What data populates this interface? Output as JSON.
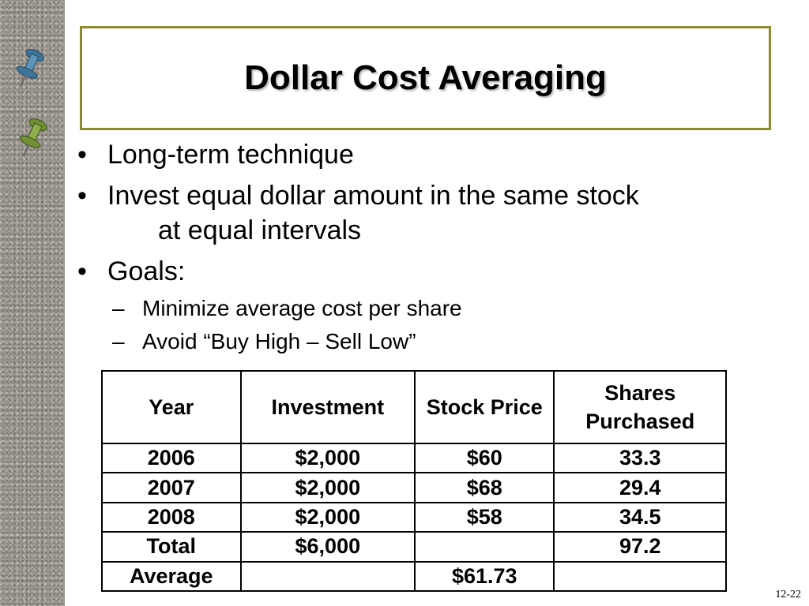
{
  "title": "Dollar Cost Averaging",
  "bullets": {
    "b1": "Long-term technique",
    "b2_line1": "Invest equal dollar amount in the same stock",
    "b2_line2": "at equal intervals",
    "b3": "Goals:",
    "sub1": "Minimize average cost per share",
    "sub2": "Avoid “Buy High – Sell Low”"
  },
  "glyphs": {
    "bullet": "•",
    "dash": "–"
  },
  "table": {
    "headers": {
      "year": "Year",
      "investment": "Investment",
      "price": "Stock Price",
      "shares": "Shares Purchased"
    },
    "rows": [
      {
        "year": "2006",
        "investment": "$2,000",
        "price": "$60",
        "shares": "33.3"
      },
      {
        "year": "2007",
        "investment": "$2,000",
        "price": "$68",
        "shares": "29.4"
      },
      {
        "year": "2008",
        "investment": "$2,000",
        "price": "$58",
        "shares": "34.5"
      }
    ],
    "total": {
      "label": "Total",
      "investment": "$6,000",
      "shares": "97.2"
    },
    "average": {
      "label": "Average",
      "price": "$61.73"
    }
  },
  "page_number": "12-22",
  "icons": {
    "pin_blue": "pushpin-icon",
    "pin_green": "pushpin-icon"
  },
  "colors": {
    "title_border": "#8c8c2e",
    "pin_blue": "#4a7fa0",
    "pin_green": "#7a9a40",
    "sidebar": "#9c9890"
  }
}
